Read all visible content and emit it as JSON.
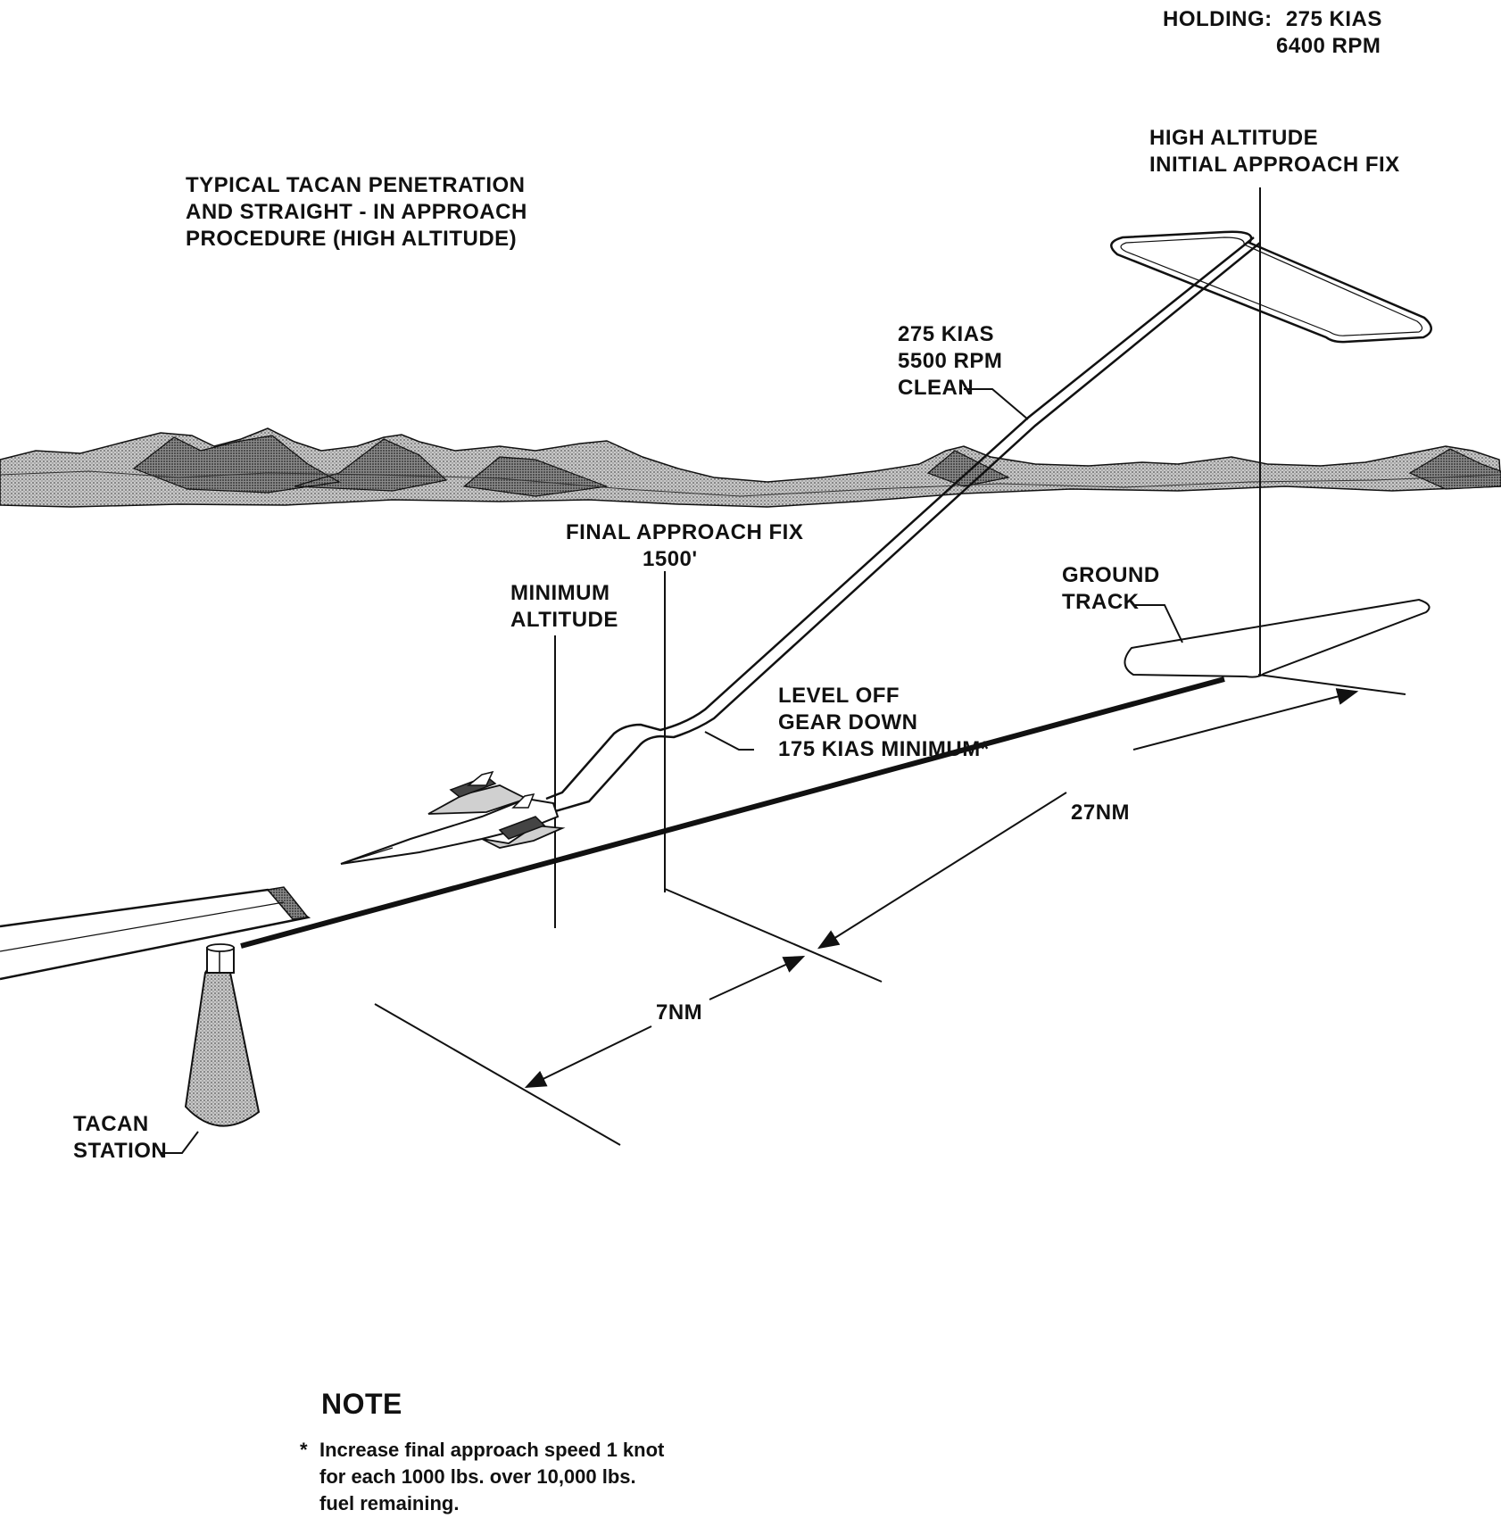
{
  "title": {
    "line1": "TYPICAL TACAN PENETRATION",
    "line2": "AND STRAIGHT - IN APPROACH",
    "line3": "PROCEDURE (HIGH ALTITUDE)"
  },
  "holding": {
    "label": "HOLDING:",
    "speed": "275 KIAS",
    "rpm": "6400 RPM"
  },
  "initial_fix": {
    "line1": "HIGH ALTITUDE",
    "line2": "INITIAL APPROACH FIX"
  },
  "penetration": {
    "speed": "275 KIAS",
    "rpm": "5500 RPM",
    "config": "CLEAN"
  },
  "final_fix": {
    "line1": "FINAL APPROACH FIX",
    "line2": "1500'"
  },
  "minimum_altitude": {
    "line1": "MINIMUM",
    "line2": "ALTITUDE"
  },
  "ground_track": {
    "line1": "GROUND",
    "line2": "TRACK"
  },
  "level_off": {
    "line1": "LEVEL OFF",
    "line2": "GEAR DOWN",
    "line3": "175 KIAS MINIMUM*"
  },
  "distances": {
    "long": "27NM",
    "short": "7NM"
  },
  "tacan_station": {
    "line1": "TACAN",
    "line2": "STATION"
  },
  "note": {
    "title": "NOTE",
    "star": "*",
    "line1": "Increase final approach speed 1 knot",
    "line2": "for each 1000 lbs. over 10,000 lbs.",
    "line3": "fuel remaining."
  },
  "colors": {
    "ink": "#111111",
    "mountain_fill": "#b5b5b5",
    "mountain_dark": "#6e6e6e",
    "runway_mark": "#555555"
  }
}
